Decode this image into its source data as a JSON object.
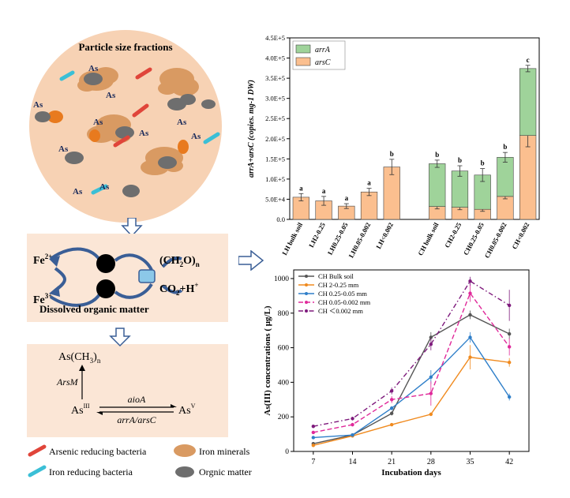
{
  "figure": {
    "panel_top_title": "Particle size fractions",
    "as_label": "As",
    "fe2": "Fe",
    "fe2_sup": "2+",
    "fe3": "Fe",
    "fe3_sup": "3+",
    "ch2o": "(CH",
    "ch2o_sub": "2",
    "ch2o_end": "O)",
    "ch2o_n": "n",
    "co2": "CO",
    "co2_sub": "2",
    "co2_end": "+H",
    "co2_sup": "+",
    "dom_label": "Dissolved organic matter",
    "asch3": "As(CH",
    "asch3_sub": "3",
    "asch3_end": ")",
    "asch3_n": "n",
    "arsm": "ArsM",
    "as3": "As",
    "as3_sup": "III",
    "as5": "As",
    "as5_sup": "V",
    "aioa": "aioA",
    "arra_arsc": "arrA/arsC",
    "legend": {
      "arsenic_bacteria": "Arsenic reducing bacteria",
      "iron_minerals": "Iron minerals",
      "iron_bacteria": "Iron reducing bacteria",
      "organic_matter": "Orgnic matter"
    },
    "colors": {
      "peach_bg": "#fbe6d6",
      "soil_circle": "#f7d2b4",
      "iron_mineral": "#d99a62",
      "organic": "#6e6e6e",
      "as_bacteria": "#e0453a",
      "fe_bacteria": "#3bbfd6",
      "arrow_blue": "#3a5e96"
    }
  },
  "chart_data": [
    {
      "type": "bar",
      "stacked": true,
      "categories": [
        "LH bulk soil",
        "LH2-0.25",
        "LH0.25-0.05",
        "LH0.05-0.002",
        "LH<0.002",
        "",
        "CH bulk soil",
        "CH2-0.25",
        "CH0.25-0.05",
        "CH0.05-0.002",
        "CH<0.002"
      ],
      "series": [
        {
          "name": "arsC",
          "color": "#fbbf8f",
          "values": [
            55000,
            46000,
            33000,
            68000,
            130000,
            null,
            32000,
            30000,
            25000,
            57000,
            208000
          ],
          "errors": [
            9000,
            11000,
            6000,
            9000,
            19000,
            null,
            6000,
            6000,
            5000,
            6000,
            28000
          ]
        },
        {
          "name": "arrA",
          "color": "#9fd39a",
          "values": [
            0,
            0,
            0,
            0,
            0,
            null,
            106000,
            90000,
            85000,
            97000,
            166000
          ],
          "errors": [
            0,
            0,
            0,
            0,
            0,
            null,
            9000,
            13000,
            16000,
            12000,
            8000
          ]
        }
      ],
      "significance": [
        "a",
        "a",
        "a",
        "a",
        "b",
        "",
        "b",
        "b",
        "b",
        "b",
        "c"
      ],
      "ylabel": "arrA+arsC (copies. mg-1 DW)",
      "yticks": [
        "0.0",
        "5.0E+4",
        "1.0E+5",
        "1.5E+5",
        "2.0E+5",
        "2.5E+5",
        "3.0E+5",
        "3.5E+5",
        "4.0E+5",
        "4.5E+5"
      ],
      "ylim": [
        0,
        450000
      ],
      "legend_position": "top-left"
    },
    {
      "type": "line",
      "x": [
        7,
        14,
        21,
        28,
        35,
        42
      ],
      "xlabel": "Incubation days",
      "ylabel": "As(III) concentrations ( μg/L)",
      "ylim": [
        0,
        1050
      ],
      "yticks": [
        0,
        200,
        400,
        600,
        800,
        1000
      ],
      "series": [
        {
          "name": "CH Bulk soil",
          "color": "#555555",
          "dash": "solid",
          "values": [
            45,
            95,
            220,
            660,
            790,
            680
          ],
          "errors": [
            6,
            8,
            12,
            30,
            25,
            30
          ]
        },
        {
          "name": "CH 2-0.25 mm",
          "color": "#f08a1e",
          "dash": "solid",
          "values": [
            35,
            90,
            155,
            215,
            545,
            515
          ],
          "errors": [
            4,
            6,
            8,
            10,
            70,
            25
          ]
        },
        {
          "name": "CH 0.25-0.05 mm",
          "color": "#2f7fc9",
          "dash": "solid",
          "values": [
            80,
            95,
            250,
            430,
            660,
            315
          ],
          "errors": [
            5,
            6,
            12,
            40,
            30,
            20
          ]
        },
        {
          "name": "CH 0.05-0.002 mm",
          "color": "#e0299a",
          "dash": "dashed",
          "values": [
            110,
            155,
            300,
            335,
            915,
            605
          ],
          "errors": [
            8,
            10,
            20,
            70,
            50,
            50
          ]
        },
        {
          "name": "CH ＜0.002 mm",
          "color": "#7e1a7c",
          "dash": "dashdot",
          "values": [
            145,
            190,
            350,
            620,
            985,
            845
          ],
          "errors": [
            8,
            10,
            20,
            35,
            25,
            90
          ]
        }
      ],
      "legend_position": "top-left"
    }
  ]
}
